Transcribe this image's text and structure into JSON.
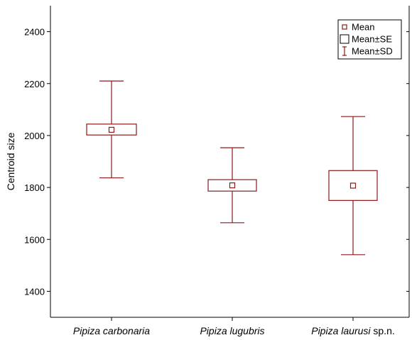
{
  "chart_data": {
    "type": "box",
    "ylabel": "Centroid size",
    "ylim": [
      1300,
      2500
    ],
    "yticks": [
      1400,
      1600,
      1800,
      2000,
      2200,
      2400
    ],
    "grid": false,
    "legend_position": "top-right",
    "color": "#8b1a1a",
    "categories": [
      {
        "italic": "Pipiza carbonaria",
        "suffix": ""
      },
      {
        "italic": "Pipiza lugubris",
        "suffix": ""
      },
      {
        "italic": "Pipiza laurusi",
        "suffix": " sp.n."
      }
    ],
    "mean": [
      2022,
      1808,
      1807
    ],
    "se_low": [
      2002,
      1786,
      1750
    ],
    "se_high": [
      2044,
      1830,
      1865
    ],
    "sd_low": [
      1837,
      1664,
      1541
    ],
    "sd_high": [
      2210,
      1953,
      2073
    ],
    "legend": [
      {
        "symbol": "small-square",
        "label": "Mean"
      },
      {
        "symbol": "box",
        "label": "Mean±SE"
      },
      {
        "symbol": "whisker",
        "label": "Mean±SD"
      }
    ]
  }
}
